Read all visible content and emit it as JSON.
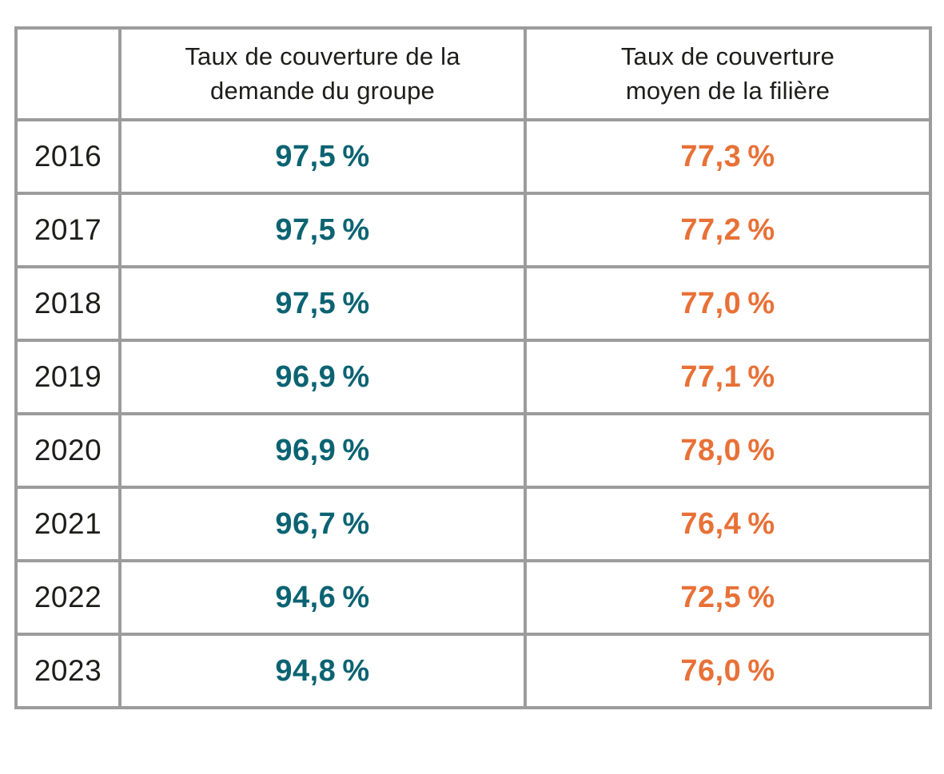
{
  "colors": {
    "teal": "#0B6372",
    "orange": "#E87137",
    "border": "#9C9C9C",
    "text": "#1D1D1B"
  },
  "table": {
    "columns": [
      {
        "header": "Taux de couverture de la\ndemande du groupe"
      },
      {
        "header": "Taux de couverture\nmoyen de la filière"
      }
    ],
    "rows": [
      {
        "year": "2016",
        "group": "97,5 %",
        "sector": "77,3 %"
      },
      {
        "year": "2017",
        "group": "97,5 %",
        "sector": "77,2 %"
      },
      {
        "year": "2018",
        "group": "97,5 %",
        "sector": "77,0 %"
      },
      {
        "year": "2019",
        "group": "96,9 %",
        "sector": "77,1 %"
      },
      {
        "year": "2020",
        "group": "96,9 %",
        "sector": "78,0 %"
      },
      {
        "year": "2021",
        "group": "96,7 %",
        "sector": "76,4 %"
      },
      {
        "year": "2022",
        "group": "94,6 %",
        "sector": "72,5 %"
      },
      {
        "year": "2023",
        "group": "94,8 %",
        "sector": "76,0 %"
      }
    ]
  },
  "chart_data": {
    "type": "table",
    "categories": [
      "2016",
      "2017",
      "2018",
      "2019",
      "2020",
      "2021",
      "2022",
      "2023"
    ],
    "series": [
      {
        "name": "Taux de couverture de la demande du groupe",
        "values": [
          97.5,
          97.5,
          97.5,
          96.9,
          96.9,
          96.7,
          94.6,
          94.8
        ],
        "color": "#0B6372"
      },
      {
        "name": "Taux de couverture moyen de la filière",
        "values": [
          77.3,
          77.2,
          77.0,
          77.1,
          78.0,
          76.4,
          72.5,
          76.0
        ],
        "color": "#E87137"
      }
    ],
    "value_unit": "%",
    "number_format": "fr-FR, one decimal, comma separator",
    "grid": true,
    "grid_color": "#9C9C9C"
  }
}
